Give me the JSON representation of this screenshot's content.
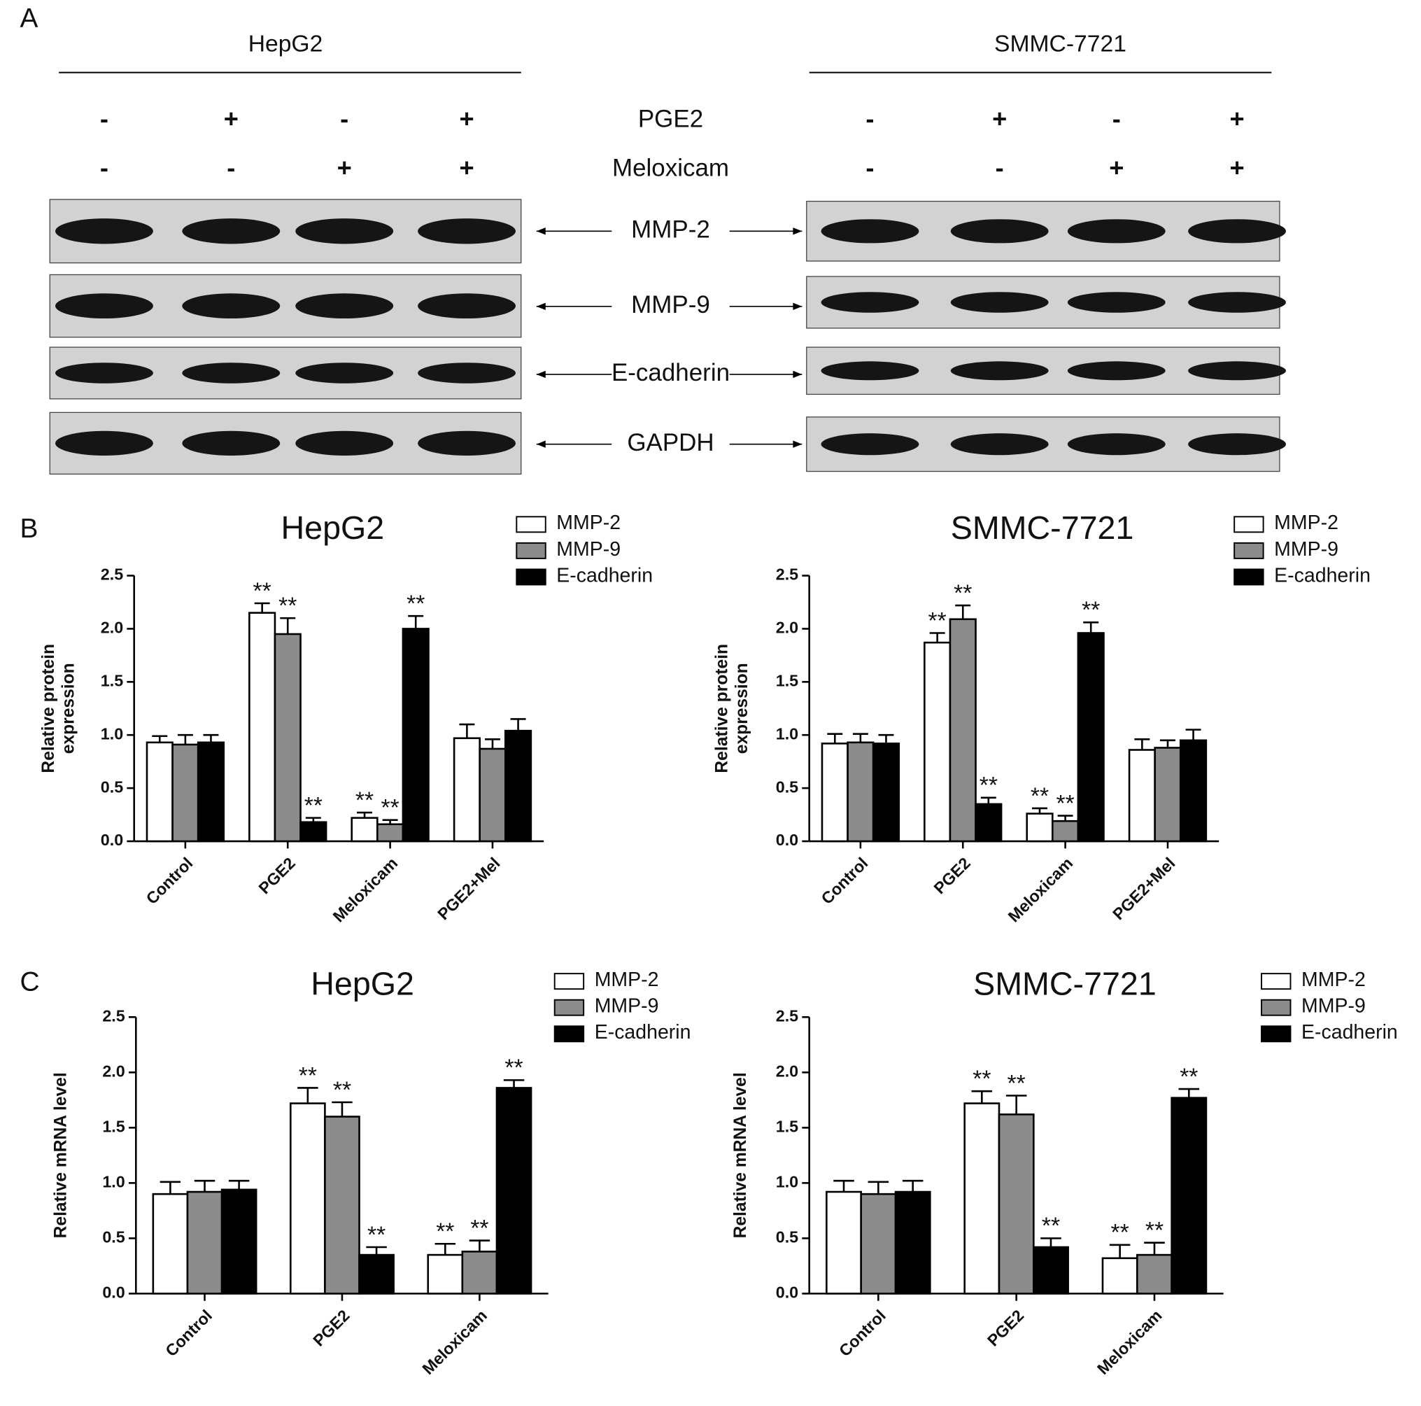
{
  "panel_labels": [
    "A",
    "B",
    "C"
  ],
  "blot": {
    "cell_lines": [
      "HepG2",
      "SMMC-7721"
    ],
    "treatments": [
      {
        "name": "PGE2",
        "signs": [
          "-",
          "+",
          "-",
          "+"
        ]
      },
      {
        "name": "Meloxicam",
        "signs": [
          "-",
          "-",
          "+",
          "+"
        ]
      }
    ],
    "proteins": [
      "MMP-2",
      "MMP-9",
      "E-cadherin",
      "GAPDH"
    ]
  },
  "chart_data": [
    {
      "type": "bar",
      "title": "HepG2",
      "ylabel": "Relative protein\nexpression",
      "categories": [
        "Control",
        "PGE2",
        "Meloxicam",
        "PGE2+Mel"
      ],
      "ylim": [
        0,
        2.5
      ],
      "yticks": [
        {
          "value": 0,
          "label": "0.0"
        },
        0.5,
        {
          "value": 1,
          "label": "1.0"
        },
        1.5,
        {
          "value": 2,
          "label": "2.0"
        },
        2.5
      ],
      "series": [
        {
          "name": "MMP-2",
          "color": "#ffffff",
          "values": [
            0.93,
            2.15,
            0.22,
            0.97
          ],
          "errors": [
            0.06,
            0.09,
            0.05,
            0.13
          ],
          "annotations": [
            null,
            "**",
            "**",
            null
          ]
        },
        {
          "name": "MMP-9",
          "color": "#8c8c8c",
          "values": [
            0.91,
            1.95,
            0.16,
            0.87
          ],
          "errors": [
            0.09,
            0.15,
            0.04,
            0.09
          ],
          "annotations": [
            null,
            "**",
            "**",
            null
          ]
        },
        {
          "name": "E-cadherin",
          "color": "#000000",
          "values": [
            0.93,
            0.18,
            2.0,
            1.04
          ],
          "errors": [
            0.07,
            0.04,
            0.12,
            0.11
          ],
          "annotations": [
            null,
            "**",
            "**",
            null
          ]
        }
      ]
    },
    {
      "type": "bar",
      "title": "SMMC-7721",
      "ylabel": "Relative protein\nexpression",
      "categories": [
        "Control",
        "PGE2",
        "Meloxicam",
        "PGE2+Mel"
      ],
      "ylim": [
        0,
        2.5
      ],
      "yticks": [
        {
          "value": 0,
          "label": "0.0"
        },
        0.5,
        {
          "value": 1,
          "label": "1.0"
        },
        1.5,
        {
          "value": 2,
          "label": "2.0"
        },
        2.5
      ],
      "series": [
        {
          "name": "MMP-2",
          "color": "#ffffff",
          "values": [
            0.92,
            1.87,
            0.26,
            0.86
          ],
          "errors": [
            0.09,
            0.09,
            0.05,
            0.1
          ],
          "annotations": [
            null,
            "**",
            "**",
            null
          ]
        },
        {
          "name": "MMP-9",
          "color": "#8c8c8c",
          "values": [
            0.93,
            2.09,
            0.19,
            0.88
          ],
          "errors": [
            0.08,
            0.13,
            0.05,
            0.07
          ],
          "annotations": [
            null,
            "**",
            "**",
            null
          ]
        },
        {
          "name": "E-cadherin",
          "color": "#000000",
          "values": [
            0.92,
            0.35,
            1.96,
            0.95
          ],
          "errors": [
            0.08,
            0.06,
            0.1,
            0.1
          ],
          "annotations": [
            null,
            "**",
            "**",
            null
          ]
        }
      ]
    },
    {
      "type": "bar",
      "title": "HepG2",
      "ylabel": "Relative mRNA level",
      "categories": [
        "Control",
        "PGE2",
        "Meloxicam"
      ],
      "ylim": [
        0,
        2.5
      ],
      "yticks": [
        {
          "value": 0,
          "label": "0.0"
        },
        0.5,
        {
          "value": 1,
          "label": "1.0"
        },
        1.5,
        {
          "value": 2,
          "label": "2.0"
        },
        2.5
      ],
      "series": [
        {
          "name": "MMP-2",
          "color": "#ffffff",
          "values": [
            0.9,
            1.72,
            0.35
          ],
          "errors": [
            0.11,
            0.14,
            0.1
          ],
          "annotations": [
            null,
            "**",
            "**"
          ]
        },
        {
          "name": "MMP-9",
          "color": "#8c8c8c",
          "values": [
            0.92,
            1.6,
            0.38
          ],
          "errors": [
            0.1,
            0.13,
            0.1
          ],
          "annotations": [
            null,
            "**",
            "**"
          ]
        },
        {
          "name": "E-cadherin",
          "color": "#000000",
          "values": [
            0.94,
            0.35,
            1.86
          ],
          "errors": [
            0.08,
            0.07,
            0.07
          ],
          "annotations": [
            null,
            "**",
            "**"
          ]
        }
      ]
    },
    {
      "type": "bar",
      "title": "SMMC-7721",
      "ylabel": "Relative mRNA level",
      "categories": [
        "Control",
        "PGE2",
        "Meloxicam"
      ],
      "ylim": [
        0,
        2.5
      ],
      "yticks": [
        {
          "value": 0,
          "label": "0.0"
        },
        0.5,
        {
          "value": 1,
          "label": "1.0"
        },
        1.5,
        {
          "value": 2,
          "label": "2.0"
        },
        2.5
      ],
      "series": [
        {
          "name": "MMP-2",
          "color": "#ffffff",
          "values": [
            0.92,
            1.72,
            0.32
          ],
          "errors": [
            0.1,
            0.11,
            0.12
          ],
          "annotations": [
            null,
            "**",
            "**"
          ]
        },
        {
          "name": "MMP-9",
          "color": "#8c8c8c",
          "values": [
            0.9,
            1.62,
            0.35
          ],
          "errors": [
            0.11,
            0.17,
            0.11
          ],
          "annotations": [
            null,
            "**",
            "**"
          ]
        },
        {
          "name": "E-cadherin",
          "color": "#000000",
          "values": [
            0.92,
            0.42,
            1.77
          ],
          "errors": [
            0.1,
            0.08,
            0.08
          ],
          "annotations": [
            null,
            "**",
            "**"
          ]
        }
      ]
    }
  ]
}
